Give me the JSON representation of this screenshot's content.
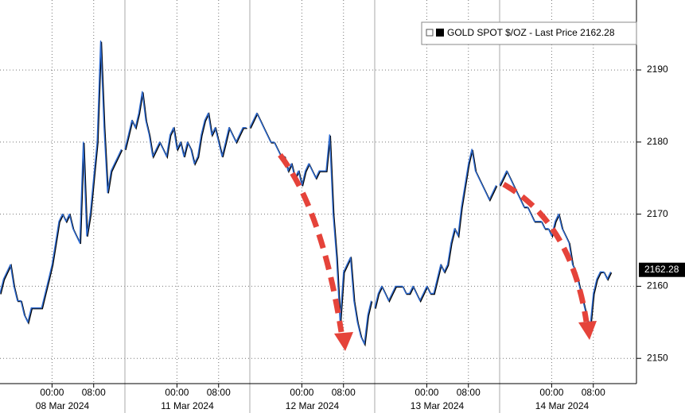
{
  "chart_data": {
    "type": "line",
    "legend": "GOLD SPOT $/OZ - Last Price 2162.28",
    "legend_position": "top-right",
    "last_price": 2162.28,
    "color": "#2f6bd0",
    "shadow_color": "#000000",
    "grid": true,
    "ylim": [
      2146.5,
      2199.7
    ],
    "yticks": [
      2150,
      2160,
      2170,
      2180,
      2190
    ],
    "days": [
      {
        "label": "08 Mar 2024",
        "categories": [
          null,
          null,
          null,
          null,
          null,
          null,
          null,
          null,
          null,
          null,
          null,
          null,
          null,
          null,
          null,
          "00:00",
          null,
          null,
          null,
          null,
          null,
          null,
          null,
          null,
          null,
          null,
          null,
          "08:00",
          null,
          null,
          null,
          null,
          null,
          null,
          null,
          null
        ],
        "values": [
          2159,
          2161,
          2162,
          2163,
          2160,
          2158,
          2158,
          2156,
          2155,
          2157,
          2157,
          2157,
          2157,
          2159,
          2161,
          2163,
          2166,
          2169,
          2170,
          2169,
          2170,
          2168,
          2167,
          2166,
          2180,
          2167,
          2170,
          2175,
          2180,
          2194,
          2182,
          2173,
          2176,
          2177,
          2178,
          2179
        ]
      },
      {
        "label": "11 Mar 2024",
        "categories": [
          null,
          null,
          null,
          null,
          null,
          null,
          null,
          null,
          null,
          null,
          null,
          null,
          null,
          null,
          null,
          "00:00",
          null,
          null,
          null,
          null,
          null,
          null,
          null,
          null,
          null,
          null,
          null,
          "08:00",
          null,
          null,
          null,
          null,
          null,
          null,
          null,
          null
        ],
        "values": [
          2179,
          2181,
          2183,
          2182,
          2184,
          2187,
          2183,
          2181,
          2178,
          2179,
          2180,
          2179,
          2178,
          2181,
          2182,
          2179,
          2180,
          2178,
          2180,
          2179,
          2177,
          2178,
          2181,
          2183,
          2184,
          2181,
          2182,
          2180,
          2178,
          2180,
          2182,
          2181,
          2180,
          2181,
          2182,
          2182
        ]
      },
      {
        "label": "12 Mar 2024",
        "categories": [
          null,
          null,
          null,
          null,
          null,
          null,
          null,
          null,
          null,
          null,
          null,
          null,
          null,
          null,
          null,
          "00:00",
          null,
          null,
          null,
          null,
          null,
          null,
          null,
          null,
          null,
          null,
          null,
          "08:00",
          null,
          null,
          null,
          null,
          null,
          null,
          null,
          null
        ],
        "values": [
          2182,
          2183,
          2184,
          2183,
          2182,
          2181,
          2180,
          2180,
          2179,
          2178,
          2178,
          2176,
          2177,
          2175,
          2176,
          2174,
          2176,
          2177,
          2176,
          2175,
          2176,
          2176,
          2176,
          2181,
          2170,
          2164,
          2155,
          2162,
          2163,
          2164,
          2158,
          2155,
          2153,
          2152,
          2156,
          2158
        ]
      },
      {
        "label": "13 Mar 2024",
        "categories": [
          null,
          null,
          null,
          null,
          null,
          null,
          null,
          null,
          null,
          null,
          null,
          null,
          null,
          null,
          null,
          "00:00",
          null,
          null,
          null,
          null,
          null,
          null,
          null,
          null,
          null,
          null,
          null,
          "08:00",
          null,
          null,
          null,
          null,
          null,
          null,
          null,
          null
        ],
        "values": [
          2157,
          2159,
          2160,
          2159,
          2158,
          2159,
          2160,
          2160,
          2160,
          2159,
          2159,
          2160,
          2159,
          2158,
          2159,
          2160,
          2159,
          2159,
          2161,
          2163,
          2162,
          2163,
          2166,
          2168,
          2167,
          2171,
          2174,
          2177,
          2179,
          2176,
          2175,
          2174,
          2173,
          2172,
          2173,
          2174
        ]
      },
      {
        "label": "14 Mar 2024",
        "categories": [
          null,
          null,
          null,
          null,
          null,
          null,
          null,
          null,
          null,
          null,
          null,
          null,
          null,
          null,
          null,
          "00:00",
          null,
          null,
          null,
          null,
          null,
          null,
          null,
          null,
          null,
          null,
          null,
          "08:00",
          null,
          null,
          null,
          null,
          null,
          null,
          null,
          null
        ],
        "values": [
          2174,
          2175,
          2176,
          2175,
          2174,
          2173,
          2172,
          2171,
          2171,
          2170,
          2169,
          2169,
          2169,
          2168,
          2168,
          2167,
          2169,
          2170,
          2168,
          2167,
          2166,
          2163,
          2162,
          2160,
          2158,
          2156,
          2154,
          2159,
          2161,
          2162,
          2162,
          2161,
          2162,
          null,
          null,
          null
        ]
      }
    ]
  }
}
